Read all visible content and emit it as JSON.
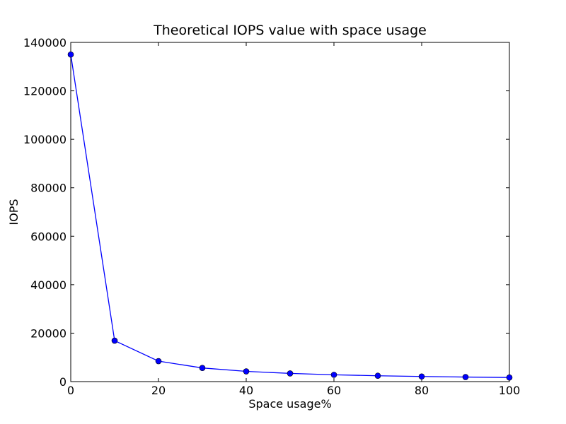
{
  "chart_data": {
    "type": "line",
    "title": "Theoretical IOPS value with space usage",
    "xlabel": "Space usage%",
    "ylabel": "IOPS",
    "xlim": [
      0,
      100
    ],
    "ylim": [
      0,
      140000
    ],
    "x_ticks": [
      "0",
      "20",
      "40",
      "60",
      "80",
      "100"
    ],
    "y_ticks": [
      "0",
      "20000",
      "40000",
      "60000",
      "80000",
      "100000",
      "120000",
      "140000"
    ],
    "grid": false,
    "series": [
      {
        "color": "#0000ff",
        "marker": "circle",
        "x": [
          0,
          10,
          20,
          30,
          40,
          50,
          60,
          70,
          80,
          90,
          100
        ],
        "y": [
          135000,
          16900,
          8450,
          5630,
          4220,
          3380,
          2810,
          2410,
          2110,
          1880,
          1690
        ]
      }
    ]
  }
}
